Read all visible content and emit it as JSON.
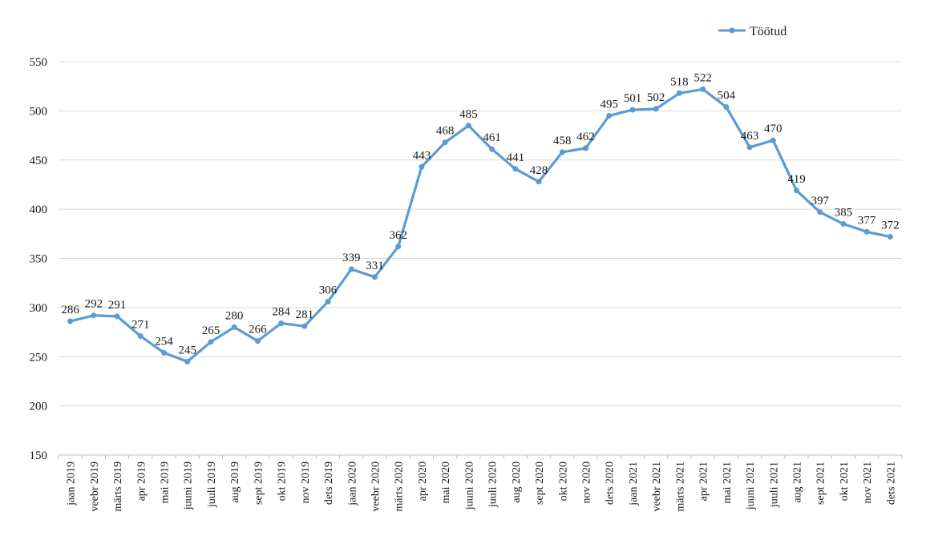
{
  "chart_data": {
    "type": "line",
    "categories": [
      "jaan 2019",
      "veebr 2019",
      "märts 2019",
      "apr 2019",
      "mai 2019",
      "juuni 2019",
      "juuli 2019",
      "aug 2019",
      "sept 2019",
      "okt 2019",
      "nov 2019",
      "dets 2019",
      "jaan 2020",
      "veebr 2020",
      "märts 2020",
      "apr 2020",
      "mai 2020",
      "juuni 2020",
      "juuli 2020",
      "aug 2020",
      "sept 2020",
      "okt 2020",
      "nov 2020",
      "dets 2020",
      "jaan 2021",
      "veebr 2021",
      "märts 2021",
      "apr 2021",
      "mai 2021",
      "juuni 2021",
      "juuli 2021",
      "aug 2021",
      "sept 2021",
      "okt 2021",
      "nov 2021",
      "dets 2021"
    ],
    "series": [
      {
        "name": "Töötud",
        "color": "#5b9bd5",
        "values": [
          286,
          292,
          291,
          271,
          254,
          245,
          265,
          280,
          266,
          284,
          281,
          306,
          339,
          331,
          362,
          443,
          468,
          485,
          461,
          441,
          428,
          458,
          462,
          495,
          501,
          502,
          518,
          522,
          504,
          463,
          470,
          419,
          397,
          385,
          377,
          372
        ]
      }
    ],
    "title": "",
    "xlabel": "",
    "ylabel": "",
    "ylim": [
      150,
      550
    ],
    "yticks": [
      150,
      200,
      250,
      300,
      350,
      400,
      450,
      500,
      550
    ],
    "grid": true,
    "legend": "top-right",
    "data_labels": true
  }
}
